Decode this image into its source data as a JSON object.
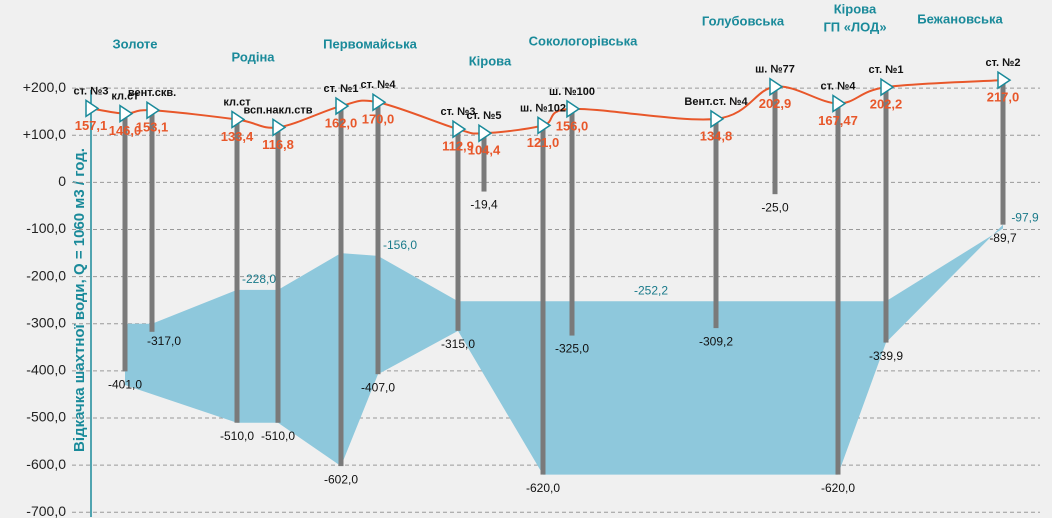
{
  "chart_data": {
    "type": "profile",
    "y_label": "Відкачка шахтної води, Q = 1060 м3 / год.",
    "ylim": [
      -710,
      230
    ],
    "yticks": [
      {
        "value": 200,
        "label": "+200,0"
      },
      {
        "value": 100,
        "label": "+100,0"
      },
      0,
      {
        "value": -100,
        "label": "-100,0"
      },
      {
        "value": -200,
        "label": "-200,0"
      },
      {
        "value": -300,
        "label": "-300,0"
      },
      {
        "value": -400,
        "label": "-400,0"
      },
      {
        "value": -500,
        "label": "-500,0"
      },
      {
        "value": -600,
        "label": "-600,0"
      },
      {
        "value": -700,
        "label": "-700,0"
      }
    ],
    "grid": true,
    "mines": [
      [
        "Золоте"
      ],
      [
        "Родіна"
      ],
      [
        "Первомайська"
      ],
      [
        "Кірова"
      ],
      [
        "Сокологорівська"
      ],
      [
        "Голубовська"
      ],
      [
        "Кірова",
        "ГП «ЛОД»"
      ],
      [
        "Бежановська"
      ]
    ],
    "shaft_names": [
      "ст. №3",
      "кл.ст",
      "вент.скв.",
      "кл.ст",
      "всп.накл.ств",
      "ст. №1",
      "ст. №4",
      "ст. №3",
      "ст. №5",
      "ш. №102",
      "ш. №100",
      "Вент.ст. №4",
      "ш. №77",
      "ст. №4",
      "ст. №1",
      "ст. №2"
    ],
    "elevations": [
      157.1,
      146.0,
      153.1,
      133.4,
      116.8,
      162.0,
      170.0,
      112.9,
      104.4,
      121.0,
      156.0,
      134.8,
      202.9,
      167.47,
      202.2,
      217.0
    ],
    "elevation_labels": [
      "157,1",
      "146,0",
      "153,1",
      "133,4",
      "116,8",
      "162,0",
      "170,0",
      "112,9",
      "104,4",
      "121,0",
      "156,0",
      "134,8",
      "202,9",
      "167,47",
      "202,2",
      "217,0"
    ],
    "depths": [
      null,
      -401.0,
      -317.0,
      -510.0,
      -510.0,
      -602.0,
      -407.0,
      -315.0,
      -19.4,
      -620.0,
      -325.0,
      -309.2,
      -25.0,
      -620.0,
      -339.9,
      -89.7
    ],
    "depth_labels": [
      null,
      "-401,0",
      "-317,0",
      "-510,0",
      "-510,0",
      "-602,0",
      "-407,0",
      "-315,0",
      "-19,4",
      "-620,0",
      "-325,0",
      "-309,2",
      "-25,0",
      "-620,0",
      "-339,9",
      "-89,7"
    ],
    "line_color": "#e8572a",
    "shaft_color": "#7a7a7a",
    "area_color": "#8ec8dc",
    "area_top": [
      null,
      -300,
      -300,
      -228.0,
      -228.0,
      -150,
      -156.0,
      -252.2,
      null,
      -252.2,
      -252.2,
      -252.2,
      null,
      -252.2,
      -252.2,
      -97.9
    ],
    "area_top_labels": [
      null,
      null,
      null,
      "-228,0",
      null,
      null,
      "-156,0",
      null,
      null,
      null,
      null,
      "-252,2",
      null,
      null,
      null,
      "-97,9"
    ],
    "area_bottom": [
      null,
      -430,
      null,
      -510.0,
      -510.0,
      -602.0,
      -407.0,
      -315.0,
      null,
      -620.0,
      null,
      null,
      null,
      -620.0,
      -339.9,
      -89.7
    ]
  }
}
